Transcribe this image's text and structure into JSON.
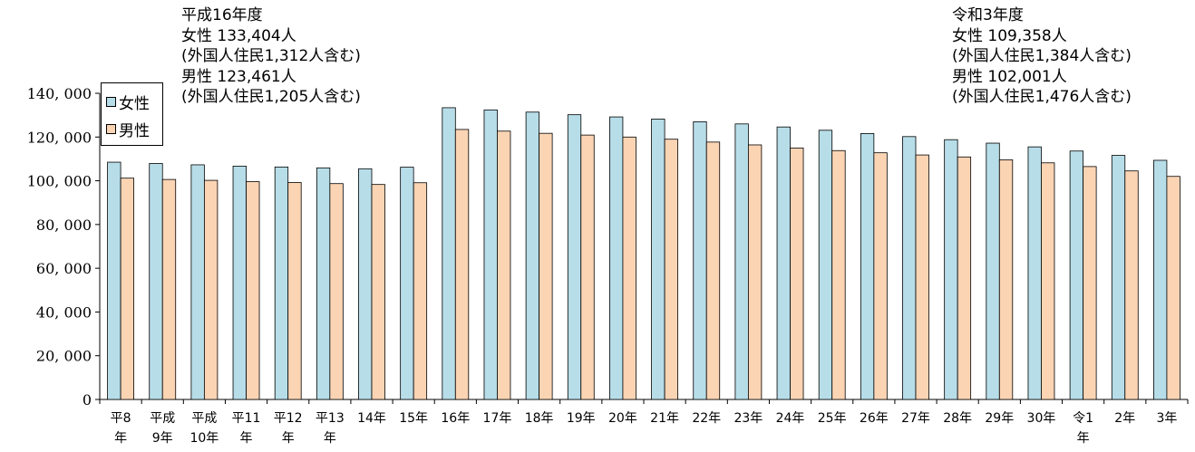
{
  "annotations": {
    "left": {
      "line1": "平成16年度",
      "line2": "女性 133,404人",
      "line3": "(外国人住民1,312人含む)",
      "line4": "男性 123,461人",
      "line5": "(外国人住民1,205人含む)"
    },
    "right": {
      "line1": "令和3年度",
      "line2": "女性 109,358人",
      "line3": "(外国人住民1,384人含む)",
      "line4": "男性 102,001人",
      "line5": "(外国人住民1,476人含む)"
    }
  },
  "chart_data": {
    "type": "bar",
    "title": "",
    "xlabel": "",
    "ylabel": "",
    "ylim": [
      0,
      140000
    ],
    "yticks": [
      "0",
      "20, 000",
      "40, 000",
      "60, 000",
      "80, 000",
      "100, 000",
      "120, 000",
      "140, 000"
    ],
    "grid": false,
    "legend_position": "top-left",
    "categories": [
      [
        "平8",
        "年"
      ],
      [
        "平成",
        "9年"
      ],
      [
        "平成",
        "10年"
      ],
      [
        "平11",
        "年"
      ],
      [
        "平12",
        "年"
      ],
      [
        "平13",
        "年"
      ],
      [
        "14年"
      ],
      [
        "15年"
      ],
      [
        "16年"
      ],
      [
        "17年"
      ],
      [
        "18年"
      ],
      [
        "19年"
      ],
      [
        "20年"
      ],
      [
        "21年"
      ],
      [
        "22年"
      ],
      [
        "23年"
      ],
      [
        "24年"
      ],
      [
        "25年"
      ],
      [
        "26年"
      ],
      [
        "27年"
      ],
      [
        "28年"
      ],
      [
        "29年"
      ],
      [
        "30年"
      ],
      [
        "令1",
        "年"
      ],
      [
        "2年"
      ],
      [
        "3年"
      ]
    ],
    "series": [
      {
        "name": "女性",
        "color": "#b7dde8",
        "values": [
          108500,
          107900,
          107300,
          106700,
          106300,
          105900,
          105500,
          106200,
          133404,
          132400,
          131400,
          130200,
          129200,
          128200,
          127000,
          126000,
          124600,
          123100,
          121600,
          120200,
          118800,
          117200,
          115500,
          113600,
          111600,
          109358
        ]
      },
      {
        "name": "男性",
        "color": "#fbd4b4",
        "values": [
          101200,
          100600,
          100200,
          99600,
          99200,
          98700,
          98300,
          99100,
          123461,
          122700,
          121700,
          120900,
          120000,
          119000,
          117700,
          116400,
          115000,
          113800,
          112800,
          111800,
          110900,
          109600,
          108200,
          106500,
          104500,
          102001
        ]
      }
    ]
  }
}
